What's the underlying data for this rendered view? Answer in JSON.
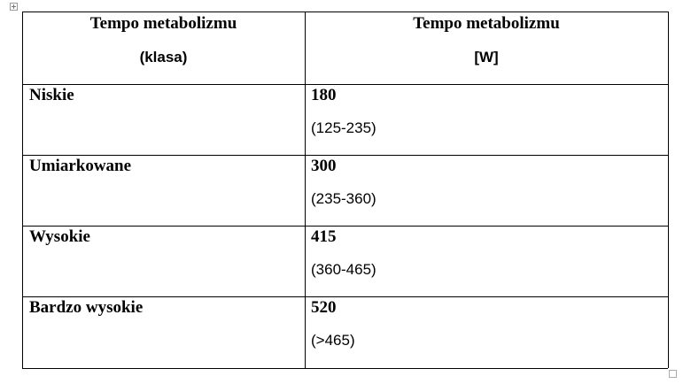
{
  "table": {
    "header": [
      {
        "line1": "Tempo metabolizmu",
        "line2": "(klasa)"
      },
      {
        "line1": "Tempo metabolizmu",
        "line2": "[W]"
      }
    ],
    "rows": [
      {
        "label": "Niskie",
        "value": 180,
        "range": "(125-235)"
      },
      {
        "label": "Umiarkowane",
        "value": 300,
        "range": "(235-360)"
      },
      {
        "label": "Wysokie",
        "value": 415,
        "range": "(360-465)"
      },
      {
        "label": "Bardzo wysokie",
        "value": 520,
        "range": "(>465)"
      }
    ]
  }
}
